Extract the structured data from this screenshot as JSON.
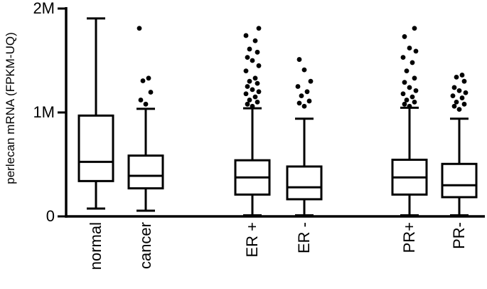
{
  "chart_data": {
    "type": "box",
    "ylabel": "perlecan mRNA (FPKM-UQ)",
    "ylim": [
      0,
      2000000
    ],
    "yticks": [
      {
        "value": 0,
        "label": "0"
      },
      {
        "value": 1000000,
        "label": "1M"
      },
      {
        "value": 2000000,
        "label": "2M"
      }
    ],
    "groups": [
      {
        "name": "normal",
        "min": 75000,
        "q1": 340000,
        "median": 525000,
        "q3": 970000,
        "max": 1905000,
        "outliers": []
      },
      {
        "name": "cancer",
        "min": 55000,
        "q1": 270000,
        "median": 390000,
        "q3": 585000,
        "max": 1035000,
        "outliers": [
          1080000,
          1120000,
          1195000,
          1305000,
          1330000,
          1810000
        ]
      },
      {
        "name": "ER +",
        "min": 10000,
        "q1": 210000,
        "median": 375000,
        "q3": 540000,
        "max": 1040000,
        "outliers": [
          1060000,
          1080000,
          1100000,
          1120000,
          1150000,
          1180000,
          1200000,
          1220000,
          1250000,
          1280000,
          1300000,
          1330000,
          1400000,
          1450000,
          1500000,
          1530000,
          1580000,
          1610000,
          1690000,
          1740000,
          1810000
        ]
      },
      {
        "name": "ER -",
        "min": 10000,
        "q1": 165000,
        "median": 280000,
        "q3": 480000,
        "max": 940000,
        "outliers": [
          1060000,
          1090000,
          1110000,
          1160000,
          1200000,
          1250000,
          1300000,
          1410000,
          1510000
        ]
      },
      {
        "name": "PR+",
        "min": 10000,
        "q1": 210000,
        "median": 375000,
        "q3": 545000,
        "max": 1045000,
        "outliers": [
          1060000,
          1080000,
          1100000,
          1120000,
          1150000,
          1180000,
          1210000,
          1240000,
          1290000,
          1330000,
          1400000,
          1480000,
          1530000,
          1590000,
          1620000,
          1730000,
          1810000
        ]
      },
      {
        "name": "PR-",
        "min": 10000,
        "q1": 185000,
        "median": 300000,
        "q3": 505000,
        "max": 940000,
        "outliers": [
          1030000,
          1060000,
          1080000,
          1100000,
          1140000,
          1160000,
          1190000,
          1210000,
          1240000,
          1300000,
          1340000,
          1360000
        ]
      }
    ]
  }
}
